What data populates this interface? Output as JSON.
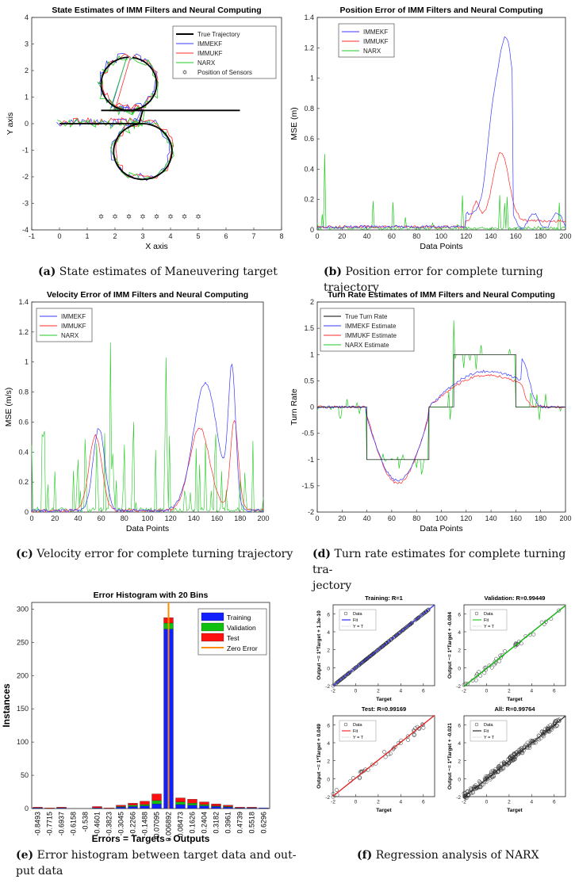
{
  "colors": {
    "imm_ekf": "#3a3aff",
    "imm_ukf": "#ff2a2a",
    "narx": "#22cc22",
    "truth": "#000000",
    "hist_train": "#1020ff",
    "hist_val": "#10c010",
    "hist_test": "#ff1010",
    "zero_error": "#ff8c00"
  },
  "captions": {
    "a": {
      "letter": "(a)",
      "text": " State estimates of Maneuvering target"
    },
    "b": {
      "letter": "(b)",
      "text": " Position error for complete turning trajectory"
    },
    "c": {
      "letter": "(c)",
      "text": " Velocity error for complete turning trajectory"
    },
    "d": {
      "letter": "(d)",
      "text": " Turn rate estimates for complete turning tra-",
      "text2": "jectory"
    },
    "e": {
      "letter": "(e)",
      "text": " Error histogram between target data and out-",
      "text2": "put data"
    },
    "f": {
      "letter": "(f)",
      "text": " Regression analysis of NARX"
    }
  },
  "chart_data": [
    {
      "id": "a",
      "type": "line",
      "title": "State Estimates of IMM Filters and Neural Computing",
      "xlabel": "X axis",
      "ylabel": "Y axis",
      "xlim": [
        -1,
        8
      ],
      "ylim": [
        -4,
        4
      ],
      "xticks": [
        -1,
        0,
        1,
        2,
        3,
        4,
        5,
        6,
        7,
        8
      ],
      "yticks": [
        -4,
        -3,
        -2,
        -1,
        0,
        1,
        2,
        3,
        4
      ],
      "legend": [
        "True Trajectory",
        "IMMEKF",
        "IMMUKF",
        "NARX",
        "Position of Sensors"
      ],
      "sensors": {
        "x": [
          1.5,
          2,
          2.5,
          3,
          3.5,
          4,
          4.5,
          5
        ],
        "y": [
          -3.5,
          -3.5,
          -3.5,
          -3.5,
          -3.5,
          -3.5,
          -3.5,
          -3.5
        ]
      }
    },
    {
      "id": "b",
      "type": "line",
      "title": "Position Error of IMM Filters and Neural Computing",
      "xlabel": "Data Points",
      "ylabel": "MSE (m)",
      "xlim": [
        0,
        200
      ],
      "ylim": [
        0,
        1.4
      ],
      "xticks": [
        0,
        20,
        40,
        60,
        80,
        100,
        120,
        140,
        160,
        180,
        200
      ],
      "yticks": [
        0,
        0.2,
        0.4,
        0.6,
        0.8,
        1,
        1.2,
        1.4
      ],
      "legend": [
        "IMMEKF",
        "IMMUKF",
        "NARX"
      ]
    },
    {
      "id": "c",
      "type": "line",
      "title": "Velocity Error of IMM Filters and Neural Computing",
      "xlabel": "Data Points",
      "ylabel": "MSE (m/s)",
      "xlim": [
        0,
        200
      ],
      "ylim": [
        0,
        1.4
      ],
      "xticks": [
        0,
        20,
        40,
        60,
        80,
        100,
        120,
        140,
        160,
        180,
        200
      ],
      "yticks": [
        0,
        0.2,
        0.4,
        0.6,
        0.8,
        1,
        1.2,
        1.4
      ],
      "legend": [
        "IMMEKF",
        "IMMUKF",
        "NARX"
      ]
    },
    {
      "id": "d",
      "type": "line",
      "title": "Turn Rate Estimates of IMM Filters and Neural Computing",
      "xlabel": "Data Points",
      "ylabel": "Turn Rate",
      "xlim": [
        0,
        200
      ],
      "ylim": [
        -2,
        2
      ],
      "xticks": [
        0,
        20,
        40,
        60,
        80,
        100,
        120,
        140,
        160,
        180,
        200
      ],
      "yticks": [
        -2,
        -1.5,
        -1,
        -0.5,
        0,
        0.5,
        1,
        1.5,
        2
      ],
      "legend": [
        "True Turn Rate",
        "IMMEKF Estimate",
        "IMMUKF Estimate",
        "NARX Estimate"
      ]
    },
    {
      "id": "e",
      "type": "bar",
      "title": "Error Histogram with 20 Bins",
      "xlabel": "Errors = Targets - Outputs",
      "ylabel": "Instances",
      "ylim": [
        0,
        310
      ],
      "yticks": [
        0,
        50,
        100,
        150,
        200,
        250,
        300
      ],
      "categories": [
        "-0.8493",
        "-0.7715",
        "-0.6937",
        "-0.6158",
        "-0.538",
        "-0.4601",
        "-0.3823",
        "-0.3045",
        "-0.2266",
        "-0.1488",
        "-0.07095",
        "0.006892",
        "0.08473",
        "0.1626",
        "0.2404",
        "0.3182",
        "0.3961",
        "0.4739",
        "0.5518",
        "0.6296"
      ],
      "series": [
        {
          "name": "Training",
          "values": [
            1,
            0,
            1,
            0,
            0,
            1,
            0,
            2,
            3,
            4,
            7,
            270,
            6,
            5,
            4,
            3,
            2,
            1,
            1,
            1
          ]
        },
        {
          "name": "Validation",
          "values": [
            0,
            0,
            0,
            0,
            0,
            0,
            0,
            1,
            2,
            2,
            5,
            9,
            4,
            3,
            2,
            1,
            1,
            0,
            0,
            0
          ]
        },
        {
          "name": "Test",
          "values": [
            1,
            1,
            1,
            0,
            0,
            2,
            1,
            2,
            3,
            5,
            10,
            8,
            6,
            6,
            4,
            3,
            2,
            1,
            1,
            0
          ]
        }
      ],
      "legend": [
        "Training",
        "Validation",
        "Test",
        "Zero Error"
      ],
      "zero_error_bin": "0.006892"
    },
    {
      "id": "f",
      "type": "scatter",
      "panels": [
        {
          "title": "Training: R=1",
          "ylabel": "Output ~= 1*Target + 1.3e-10",
          "xlabel": "Target",
          "fit": [
            1,
            0
          ],
          "color": "#0000ff"
        },
        {
          "title": "Validation: R=0.99449",
          "ylabel": "Output ~= 1*Target + -0.084",
          "xlabel": "Target",
          "fit": [
            1,
            -0.084
          ],
          "color": "#00c000"
        },
        {
          "title": "Test: R=0.99169",
          "ylabel": "Output ~= 1*Target + 0.049",
          "xlabel": "Target",
          "fit": [
            1,
            0.049
          ],
          "color": "#ff0000"
        },
        {
          "title": "All: R=0.99764",
          "ylabel": "Output ~= 1*Target + -0.021",
          "xlabel": "Target",
          "fit": [
            1,
            -0.021
          ],
          "color": "#000000"
        }
      ],
      "xlim": [
        -2,
        7
      ],
      "ylim": [
        -2,
        7
      ],
      "ticks": [
        -2,
        0,
        2,
        4,
        6
      ],
      "legend": [
        "Data",
        "Fit",
        "Y = T"
      ]
    }
  ]
}
